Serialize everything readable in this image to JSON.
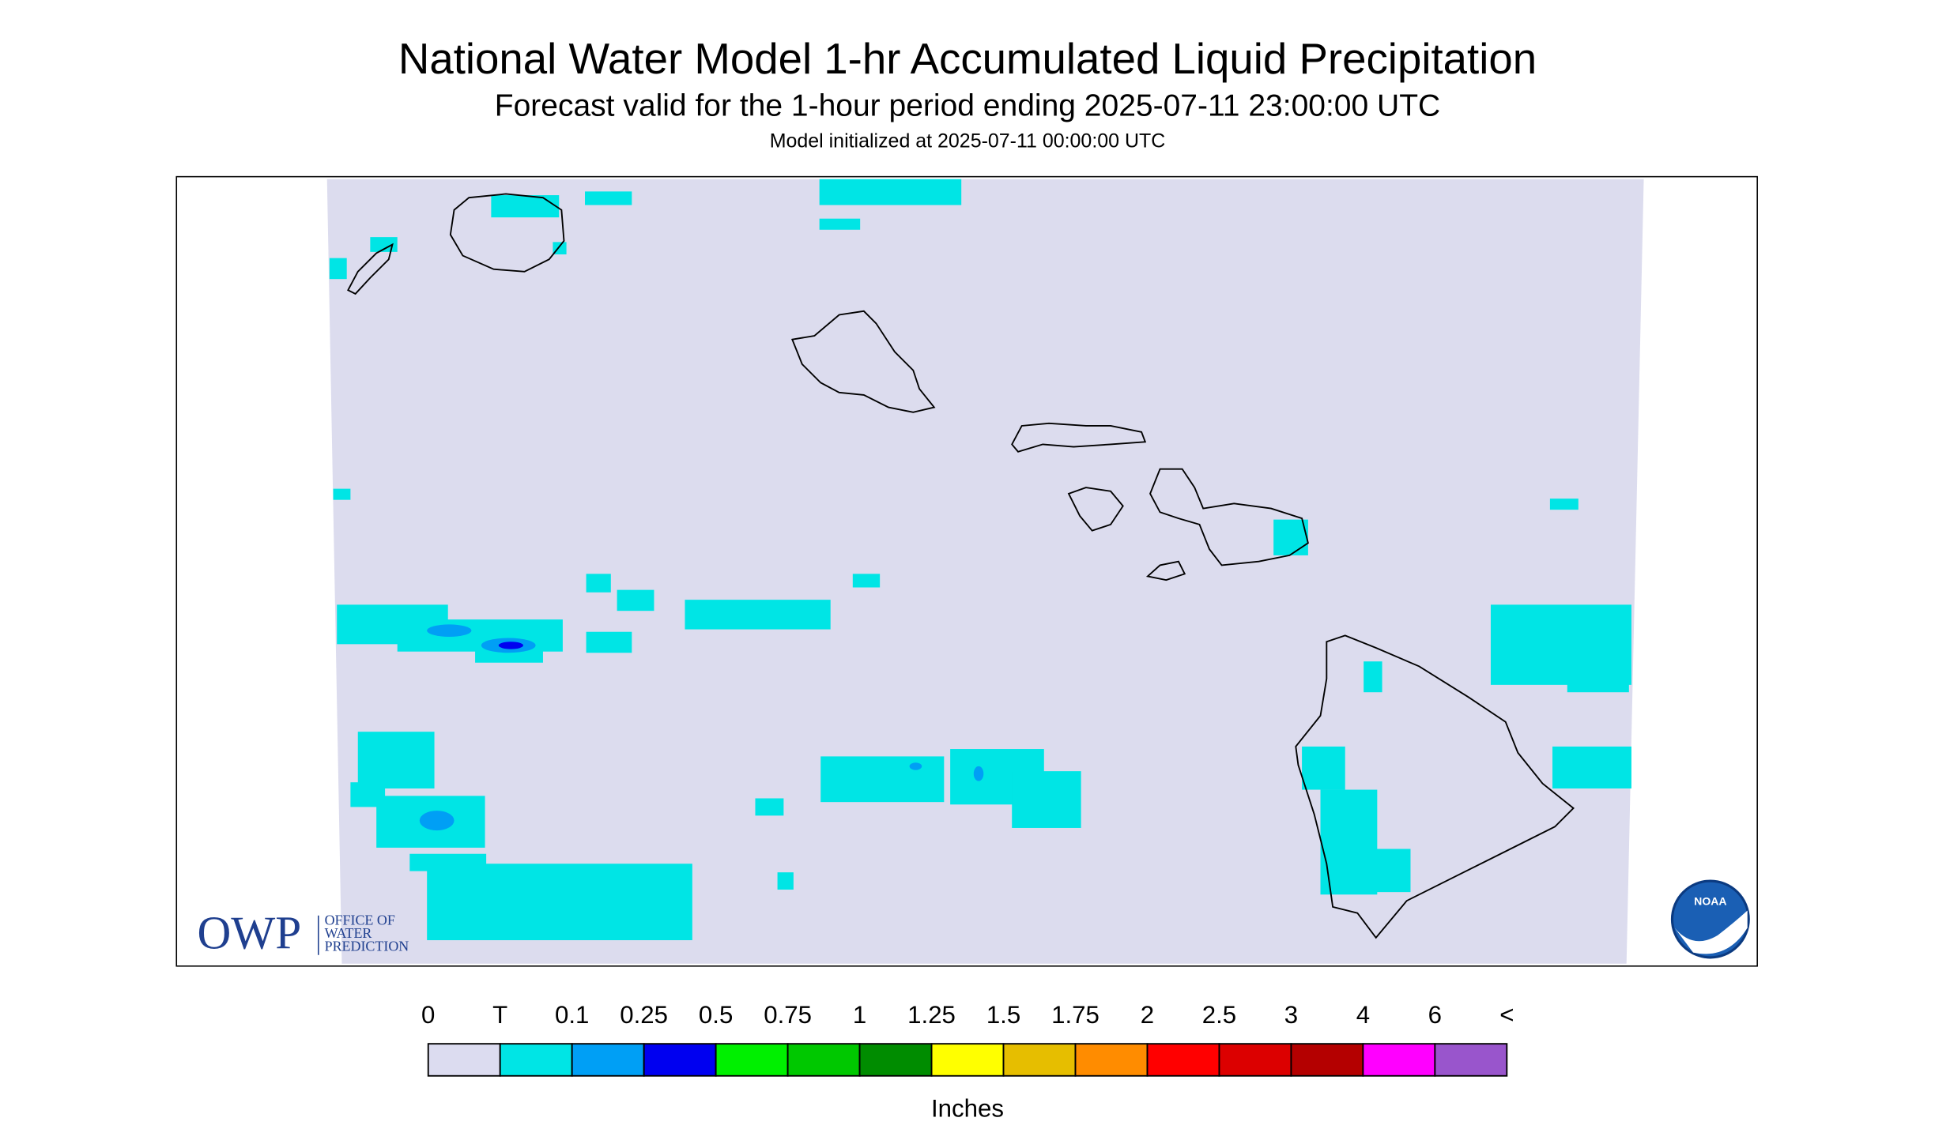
{
  "header": {
    "title": "National Water Model 1-hr Accumulated Liquid Precipitation",
    "subtitle": "Forecast valid for the 1-hour period ending 2025-07-11 23:00:00 UTC",
    "init": "Model initialized at 2025-07-11 00:00:00 UTC"
  },
  "logo": {
    "owp": "OWP",
    "lines": [
      "OFFICE OF",
      "WATER",
      "PREDICTION"
    ],
    "noaa": "NOAA"
  },
  "legend": {
    "labels": [
      "0",
      "T",
      "0.1",
      "0.25",
      "0.5",
      "0.75",
      "1",
      "1.25",
      "1.5",
      "1.75",
      "2",
      "2.5",
      "3",
      "4",
      "6",
      "<"
    ],
    "colors": [
      "#dcdcf0",
      "#00e5e5",
      "#009ff5",
      "#0000f0",
      "#00f000",
      "#00c800",
      "#008c00",
      "#ffff00",
      "#e6be00",
      "#ff8c00",
      "#ff0000",
      "#dc0000",
      "#b40000",
      "#ff00ff",
      "#9955cc"
    ],
    "unit": "Inches"
  }
}
